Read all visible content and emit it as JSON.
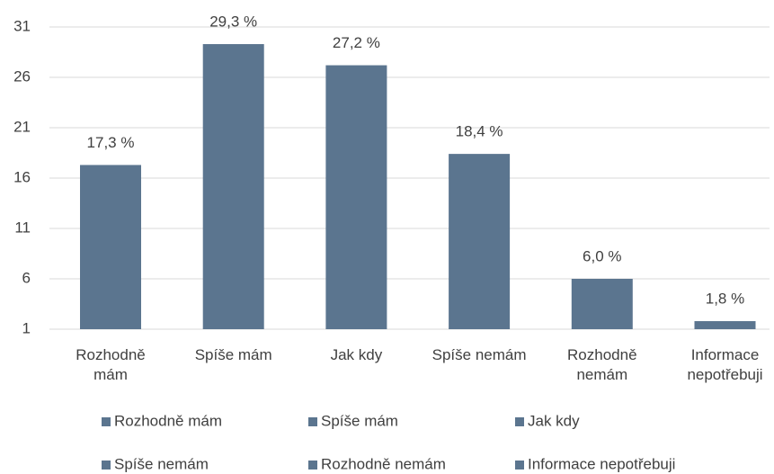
{
  "chart_data": {
    "type": "bar",
    "categories": [
      "Rozhodně mám",
      "Spíše mám",
      "Jak kdy",
      "Spíše nemám",
      "Rozhodně nemám",
      "Informace nepotřebuji"
    ],
    "values": [
      17.3,
      29.3,
      27.2,
      18.4,
      6.0,
      1.8
    ],
    "value_labels": [
      "17,3 %",
      "29,3 %",
      "27,2 %",
      "18,4 %",
      "6,0 %",
      "1,8 %"
    ],
    "color": "#5b758f",
    "ylim": [
      1,
      31
    ],
    "yticks": [
      1,
      6,
      11,
      16,
      21,
      26,
      31
    ],
    "grid": true,
    "legend": "bottom"
  }
}
